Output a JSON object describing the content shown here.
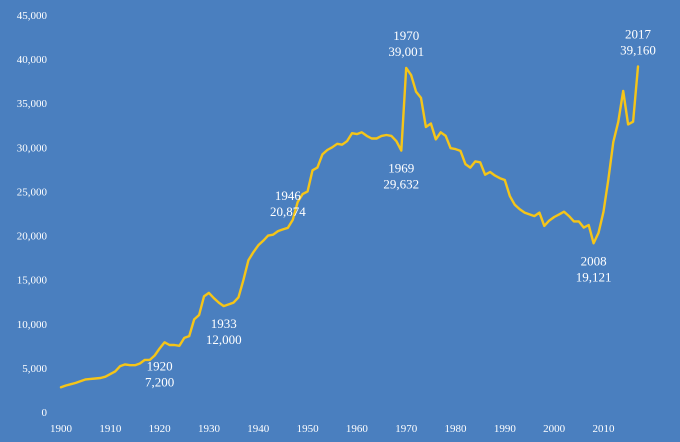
{
  "chart_data": {
    "type": "line",
    "title": "",
    "xlabel": "",
    "ylabel": "",
    "xlim": [
      1900,
      2017
    ],
    "ylim": [
      0,
      45000
    ],
    "grid": false,
    "line_color": "#f5c518",
    "background_color": "#4a7fbf",
    "x_ticks": [
      {
        "value": 1900,
        "label": "1900"
      },
      {
        "value": 1910,
        "label": "1910"
      },
      {
        "value": 1920,
        "label": "1920"
      },
      {
        "value": 1930,
        "label": "1930"
      },
      {
        "value": 1940,
        "label": "1940"
      },
      {
        "value": 1950,
        "label": "1950"
      },
      {
        "value": 1960,
        "label": "1960"
      },
      {
        "value": 1970,
        "label": "1970"
      },
      {
        "value": 1980,
        "label": "1980"
      },
      {
        "value": 1990,
        "label": "1990"
      },
      {
        "value": 2000,
        "label": "2000"
      },
      {
        "value": 2010,
        "label": "2010"
      }
    ],
    "y_ticks": [
      {
        "value": 0,
        "label": "0"
      },
      {
        "value": 5000,
        "label": "5,000"
      },
      {
        "value": 10000,
        "label": "10,000"
      },
      {
        "value": 15000,
        "label": "15,000"
      },
      {
        "value": 20000,
        "label": "20,000"
      },
      {
        "value": 25000,
        "label": "25,000"
      },
      {
        "value": 30000,
        "label": "30,000"
      },
      {
        "value": 35000,
        "label": "35,000"
      },
      {
        "value": 40000,
        "label": "40,000"
      },
      {
        "value": 45000,
        "label": "45,000"
      }
    ],
    "annotations": [
      {
        "x": 1920,
        "y": 7200,
        "year": "1920",
        "value": "7,200",
        "position": "below"
      },
      {
        "x": 1933,
        "y": 12000,
        "year": "1933",
        "value": "12,000",
        "position": "below"
      },
      {
        "x": 1946,
        "y": 20874,
        "year": "1946",
        "value": "20,874",
        "position": "above"
      },
      {
        "x": 1969,
        "y": 29632,
        "year": "1969",
        "value": "29,632",
        "position": "below"
      },
      {
        "x": 1970,
        "y": 39001,
        "year": "1970",
        "value": "39,001",
        "position": "above"
      },
      {
        "x": 2008,
        "y": 19121,
        "year": "2008",
        "value": "19,121",
        "position": "below"
      },
      {
        "x": 2017,
        "y": 39160,
        "year": "2017",
        "value": "39,160",
        "position": "above"
      }
    ],
    "series": [
      {
        "points": [
          [
            1900,
            2800
          ],
          [
            1901,
            3000
          ],
          [
            1902,
            3150
          ],
          [
            1903,
            3300
          ],
          [
            1904,
            3500
          ],
          [
            1905,
            3700
          ],
          [
            1906,
            3750
          ],
          [
            1907,
            3800
          ],
          [
            1908,
            3850
          ],
          [
            1909,
            4000
          ],
          [
            1910,
            4300
          ],
          [
            1911,
            4600
          ],
          [
            1912,
            5200
          ],
          [
            1913,
            5400
          ],
          [
            1914,
            5300
          ],
          [
            1915,
            5300
          ],
          [
            1916,
            5500
          ],
          [
            1917,
            5900
          ],
          [
            1918,
            5900
          ],
          [
            1919,
            6400
          ],
          [
            1920,
            7200
          ],
          [
            1921,
            7900
          ],
          [
            1922,
            7600
          ],
          [
            1923,
            7600
          ],
          [
            1924,
            7500
          ],
          [
            1925,
            8400
          ],
          [
            1926,
            8600
          ],
          [
            1927,
            10500
          ],
          [
            1928,
            11000
          ],
          [
            1929,
            13100
          ],
          [
            1930,
            13500
          ],
          [
            1931,
            12900
          ],
          [
            1932,
            12400
          ],
          [
            1933,
            12000
          ],
          [
            1934,
            12200
          ],
          [
            1935,
            12400
          ],
          [
            1936,
            13000
          ],
          [
            1937,
            15000
          ],
          [
            1938,
            17200
          ],
          [
            1939,
            18100
          ],
          [
            1940,
            18900
          ],
          [
            1941,
            19400
          ],
          [
            1942,
            20000
          ],
          [
            1943,
            20100
          ],
          [
            1944,
            20500
          ],
          [
            1945,
            20700
          ],
          [
            1946,
            20874
          ],
          [
            1947,
            21800
          ],
          [
            1948,
            23800
          ],
          [
            1949,
            24700
          ],
          [
            1950,
            25000
          ],
          [
            1951,
            27400
          ],
          [
            1952,
            27700
          ],
          [
            1953,
            29200
          ],
          [
            1954,
            29700
          ],
          [
            1955,
            30000
          ],
          [
            1956,
            30400
          ],
          [
            1957,
            30300
          ],
          [
            1958,
            30700
          ],
          [
            1959,
            31600
          ],
          [
            1960,
            31500
          ],
          [
            1961,
            31700
          ],
          [
            1962,
            31300
          ],
          [
            1963,
            31000
          ],
          [
            1964,
            31000
          ],
          [
            1965,
            31300
          ],
          [
            1966,
            31400
          ],
          [
            1967,
            31300
          ],
          [
            1968,
            30700
          ],
          [
            1969,
            29632
          ],
          [
            1970,
            39001
          ],
          [
            1971,
            38200
          ],
          [
            1972,
            36300
          ],
          [
            1973,
            35600
          ],
          [
            1974,
            32300
          ],
          [
            1975,
            32700
          ],
          [
            1976,
            30900
          ],
          [
            1977,
            31700
          ],
          [
            1978,
            31300
          ],
          [
            1979,
            29900
          ],
          [
            1980,
            29800
          ],
          [
            1981,
            29600
          ],
          [
            1982,
            28100
          ],
          [
            1983,
            27700
          ],
          [
            1984,
            28400
          ],
          [
            1985,
            28300
          ],
          [
            1986,
            26900
          ],
          [
            1987,
            27200
          ],
          [
            1988,
            26800
          ],
          [
            1989,
            26500
          ],
          [
            1990,
            26300
          ],
          [
            1991,
            24500
          ],
          [
            1992,
            23500
          ],
          [
            1993,
            23000
          ],
          [
            1994,
            22600
          ],
          [
            1995,
            22400
          ],
          [
            1996,
            22200
          ],
          [
            1997,
            22600
          ],
          [
            1998,
            21100
          ],
          [
            1999,
            21700
          ],
          [
            2000,
            22100
          ],
          [
            2001,
            22400
          ],
          [
            2002,
            22700
          ],
          [
            2003,
            22200
          ],
          [
            2004,
            21600
          ],
          [
            2005,
            21600
          ],
          [
            2006,
            20900
          ],
          [
            2007,
            21200
          ],
          [
            2008,
            19121
          ],
          [
            2009,
            20300
          ],
          [
            2010,
            22700
          ],
          [
            2011,
            26400
          ],
          [
            2012,
            30600
          ],
          [
            2013,
            32900
          ],
          [
            2014,
            36400
          ],
          [
            2015,
            32600
          ],
          [
            2016,
            32900
          ],
          [
            2017,
            39160
          ]
        ]
      }
    ]
  }
}
